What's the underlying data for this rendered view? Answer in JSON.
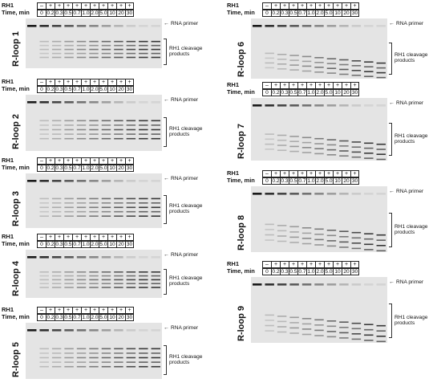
{
  "header": {
    "rh1_label": "RH1",
    "time_label": "Time, min",
    "enzyme_marks": [
      "–",
      "+",
      "+",
      "+",
      "+",
      "+",
      "+",
      "+",
      "+",
      "+",
      "+"
    ],
    "time_values": [
      "0",
      "0.2",
      "0.3",
      "0.5",
      "0.7",
      "1.0",
      "2.0",
      "5.0",
      "10",
      "20",
      "30"
    ]
  },
  "labels": {
    "rna_primer": "RNA primer",
    "cleavage_line1": "RH1 cleavage",
    "cleavage_line2": "products"
  },
  "panels": [
    {
      "name": "R-loop 1"
    },
    {
      "name": "R-loop 2"
    },
    {
      "name": "R-loop 3"
    },
    {
      "name": "R-loop 4"
    },
    {
      "name": "R-loop 5"
    },
    {
      "name": "R-loop 6"
    },
    {
      "name": "R-loop 7"
    },
    {
      "name": "R-loop 8"
    },
    {
      "name": "R-loop 9"
    }
  ],
  "colors": {
    "gel_background": "#e4e4e4",
    "band": "#1a1a1a"
  }
}
